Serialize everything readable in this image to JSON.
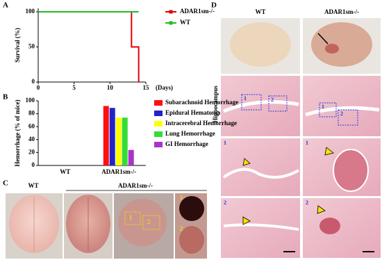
{
  "panels": {
    "a": "A",
    "b": "B",
    "c": "C",
    "d": "D"
  },
  "chart_data": [
    {
      "type": "line",
      "xlabel": "(Days)",
      "ylabel": "Survival (%)",
      "xlim": [
        0,
        15
      ],
      "ylim": [
        0,
        105
      ],
      "xticks": [
        0,
        5,
        10,
        15
      ],
      "yticks": [
        0,
        50,
        100
      ],
      "series": [
        {
          "name": "ADAR1sm-/-",
          "color": "#e00000",
          "x": [
            0,
            13,
            13,
            14,
            14
          ],
          "values": [
            100,
            100,
            50,
            50,
            0
          ]
        },
        {
          "name": "WT",
          "color": "#22bb22",
          "x": [
            0,
            14
          ],
          "values": [
            100,
            100
          ]
        }
      ]
    },
    {
      "type": "bar",
      "ylabel": "Hemorrhage (% of mice)",
      "categories": [
        "WT",
        "ADAR1sm-/-"
      ],
      "ylim": [
        0,
        100
      ],
      "yticks": [
        0,
        20,
        40,
        60,
        80,
        100
      ],
      "series": [
        {
          "name": "Subarachnoid Hemorrhage",
          "color": "#ff1010",
          "values": [
            0,
            92
          ]
        },
        {
          "name": "Epidural Hematoma",
          "color": "#2222cc",
          "values": [
            0,
            89
          ]
        },
        {
          "name": "Intracerebral Hemorrhage",
          "color": "#ffff00",
          "values": [
            0,
            74
          ]
        },
        {
          "name": "Lung Hemorrhage",
          "color": "#33dd33",
          "values": [
            0,
            74
          ]
        },
        {
          "name": "GI Hemorrhage",
          "color": "#aa33cc",
          "values": [
            0,
            24
          ]
        }
      ]
    }
  ],
  "figure_c": {
    "group_wt": "WT",
    "group_adar": "ADAR1sm-/-",
    "region_1": "1",
    "region_2": "2",
    "inset_1": "1",
    "inset_2": "2"
  },
  "figure_d": {
    "col_wt": "WT",
    "col_adar": "ADAR1sm-/-",
    "row_label": "Hippocampus",
    "box_wt_1": "1",
    "box_wt_2": "2",
    "box_adar_1": "1",
    "box_adar_2": "2",
    "zoom_wt_1": "1",
    "zoom_adar_1": "1",
    "zoom_wt_2": "2",
    "zoom_adar_2": "2"
  }
}
